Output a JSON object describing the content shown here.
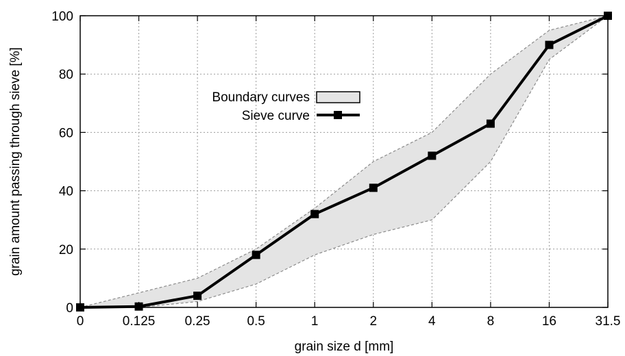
{
  "chart_data": {
    "type": "line",
    "xlabel": "grain size d [mm]",
    "ylabel": "grain amount passing through sieve [%]",
    "categories": [
      "0",
      "0.125",
      "0.25",
      "0.5",
      "1",
      "2",
      "4",
      "8",
      "16",
      "31.5"
    ],
    "ylim": [
      0,
      100
    ],
    "yticks": [
      0,
      20,
      40,
      60,
      80,
      100
    ],
    "grid": true,
    "legend_position": "upper-left",
    "series": [
      {
        "name": "Boundary curves",
        "style": "band",
        "color": "#e4e4e4",
        "upper": [
          0,
          5,
          10,
          20,
          34,
          50,
          60,
          80,
          95,
          100
        ],
        "lower": [
          0,
          0,
          2,
          8,
          18,
          25,
          30,
          50,
          85,
          100
        ]
      },
      {
        "name": "Sieve curve",
        "style": "line-square-markers",
        "color": "#000000",
        "values": [
          0,
          0.3,
          4,
          18,
          32,
          41,
          52,
          63,
          90,
          100
        ]
      }
    ]
  }
}
